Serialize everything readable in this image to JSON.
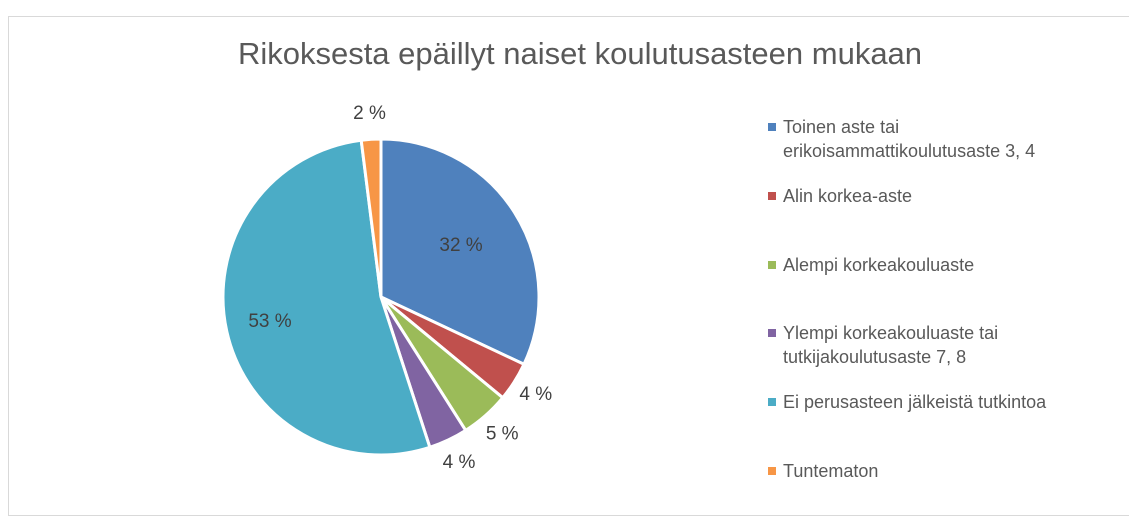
{
  "chart_data": {
    "type": "pie",
    "title": "Rikoksesta epäillyt naiset koulutusasteen mukaan",
    "categories": [
      "Toinen aste tai erikoisammattikoulutusaste 3, 4",
      "Alin korkea-aste",
      "Alempi korkeakouluaste",
      "Ylempi korkeakouluaste tai tutkijakoulutusaste 7, 8",
      "Ei perusasteen jälkeistä tutkintoa",
      "Tuntematon"
    ],
    "values": [
      32,
      4,
      5,
      4,
      53,
      2
    ],
    "value_labels": [
      "32 %",
      "4 %",
      "5 %",
      "4 %",
      "53 %",
      "2 %"
    ],
    "colors": [
      "#4f81bd",
      "#c0504d",
      "#9bbb59",
      "#8064a2",
      "#4bacc6",
      "#f79646"
    ],
    "legend": "right"
  }
}
